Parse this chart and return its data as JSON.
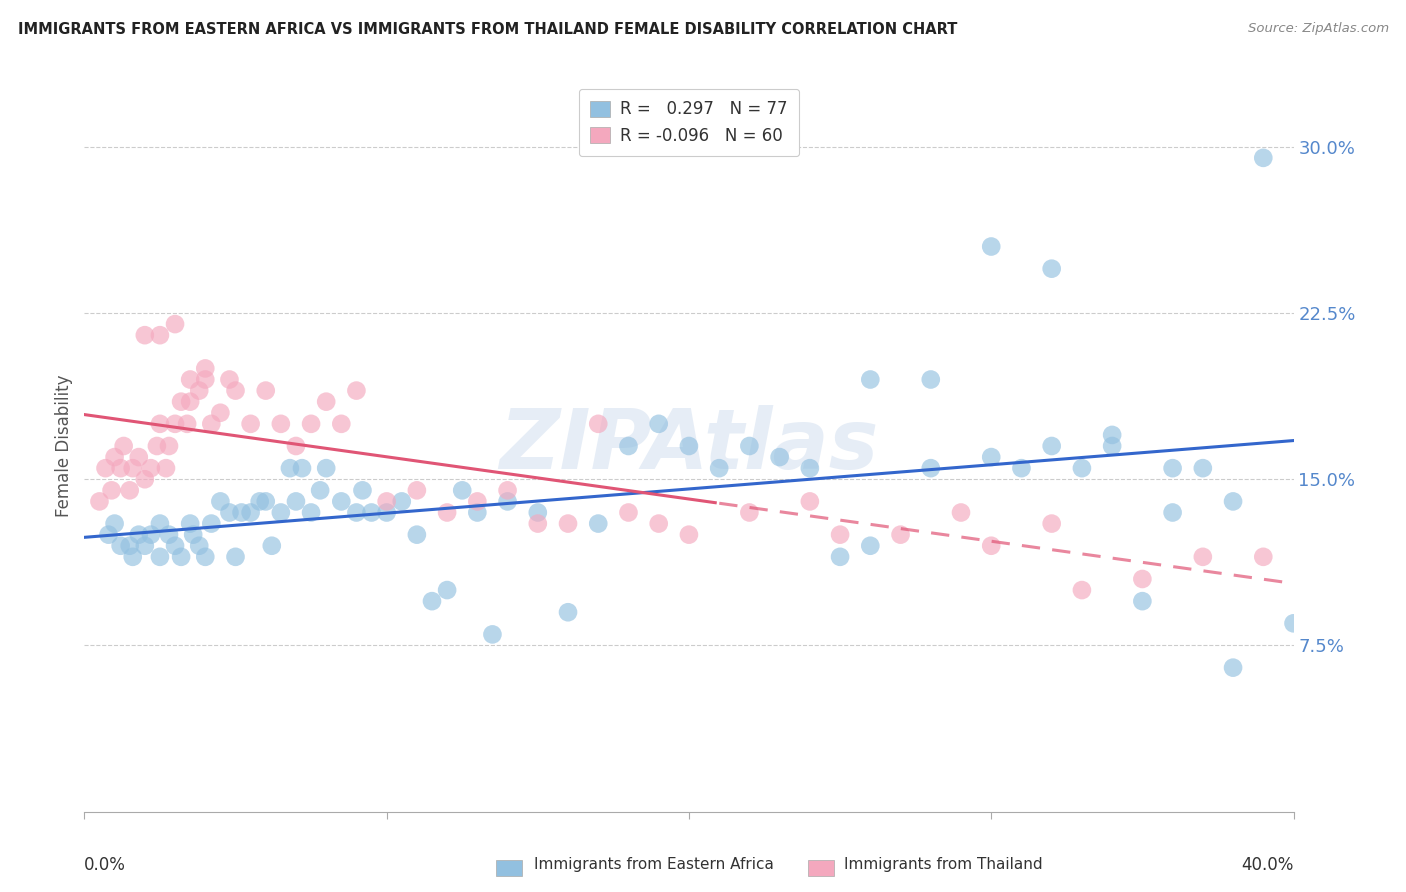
{
  "title": "IMMIGRANTS FROM EASTERN AFRICA VS IMMIGRANTS FROM THAILAND FEMALE DISABILITY CORRELATION CHART",
  "source": "Source: ZipAtlas.com",
  "ylabel": "Female Disability",
  "ytick_labels": [
    "30.0%",
    "22.5%",
    "15.0%",
    "7.5%"
  ],
  "ytick_values": [
    0.3,
    0.225,
    0.15,
    0.075
  ],
  "xlim": [
    0.0,
    0.4
  ],
  "ylim": [
    0.0,
    0.33
  ],
  "series1_color": "#92C0E0",
  "series2_color": "#F4A8BE",
  "trend1_color": "#3366CC",
  "trend2_color": "#E05575",
  "watermark": "ZIPAtlas",
  "series1_x": [
    0.008,
    0.01,
    0.012,
    0.015,
    0.016,
    0.018,
    0.02,
    0.022,
    0.025,
    0.025,
    0.028,
    0.03,
    0.032,
    0.035,
    0.036,
    0.038,
    0.04,
    0.042,
    0.045,
    0.048,
    0.05,
    0.052,
    0.055,
    0.058,
    0.06,
    0.062,
    0.065,
    0.068,
    0.07,
    0.072,
    0.075,
    0.078,
    0.08,
    0.085,
    0.09,
    0.092,
    0.095,
    0.1,
    0.105,
    0.11,
    0.115,
    0.12,
    0.125,
    0.13,
    0.135,
    0.14,
    0.15,
    0.16,
    0.17,
    0.18,
    0.19,
    0.2,
    0.21,
    0.22,
    0.23,
    0.24,
    0.25,
    0.26,
    0.28,
    0.3,
    0.31,
    0.32,
    0.33,
    0.34,
    0.35,
    0.36,
    0.37,
    0.38,
    0.26,
    0.28,
    0.3,
    0.32,
    0.34,
    0.36,
    0.38,
    0.4,
    0.39
  ],
  "series1_y": [
    0.125,
    0.13,
    0.12,
    0.12,
    0.115,
    0.125,
    0.12,
    0.125,
    0.115,
    0.13,
    0.125,
    0.12,
    0.115,
    0.13,
    0.125,
    0.12,
    0.115,
    0.13,
    0.14,
    0.135,
    0.115,
    0.135,
    0.135,
    0.14,
    0.14,
    0.12,
    0.135,
    0.155,
    0.14,
    0.155,
    0.135,
    0.145,
    0.155,
    0.14,
    0.135,
    0.145,
    0.135,
    0.135,
    0.14,
    0.125,
    0.095,
    0.1,
    0.145,
    0.135,
    0.08,
    0.14,
    0.135,
    0.09,
    0.13,
    0.165,
    0.175,
    0.165,
    0.155,
    0.165,
    0.16,
    0.155,
    0.115,
    0.12,
    0.155,
    0.16,
    0.155,
    0.165,
    0.155,
    0.17,
    0.095,
    0.155,
    0.155,
    0.065,
    0.195,
    0.195,
    0.255,
    0.245,
    0.165,
    0.135,
    0.14,
    0.085,
    0.295
  ],
  "series2_x": [
    0.005,
    0.007,
    0.009,
    0.01,
    0.012,
    0.013,
    0.015,
    0.016,
    0.018,
    0.02,
    0.022,
    0.024,
    0.025,
    0.027,
    0.028,
    0.03,
    0.032,
    0.034,
    0.035,
    0.038,
    0.04,
    0.042,
    0.045,
    0.048,
    0.05,
    0.055,
    0.06,
    0.065,
    0.07,
    0.075,
    0.08,
    0.085,
    0.09,
    0.1,
    0.11,
    0.12,
    0.13,
    0.14,
    0.15,
    0.16,
    0.17,
    0.18,
    0.19,
    0.2,
    0.22,
    0.24,
    0.25,
    0.27,
    0.29,
    0.3,
    0.32,
    0.33,
    0.35,
    0.37,
    0.39,
    0.02,
    0.025,
    0.03,
    0.035,
    0.04
  ],
  "series2_y": [
    0.14,
    0.155,
    0.145,
    0.16,
    0.155,
    0.165,
    0.145,
    0.155,
    0.16,
    0.15,
    0.155,
    0.165,
    0.175,
    0.155,
    0.165,
    0.175,
    0.185,
    0.175,
    0.185,
    0.19,
    0.2,
    0.175,
    0.18,
    0.195,
    0.19,
    0.175,
    0.19,
    0.175,
    0.165,
    0.175,
    0.185,
    0.175,
    0.19,
    0.14,
    0.145,
    0.135,
    0.14,
    0.145,
    0.13,
    0.13,
    0.175,
    0.135,
    0.13,
    0.125,
    0.135,
    0.14,
    0.125,
    0.125,
    0.135,
    0.12,
    0.13,
    0.1,
    0.105,
    0.115,
    0.115,
    0.215,
    0.215,
    0.22,
    0.195,
    0.195
  ]
}
